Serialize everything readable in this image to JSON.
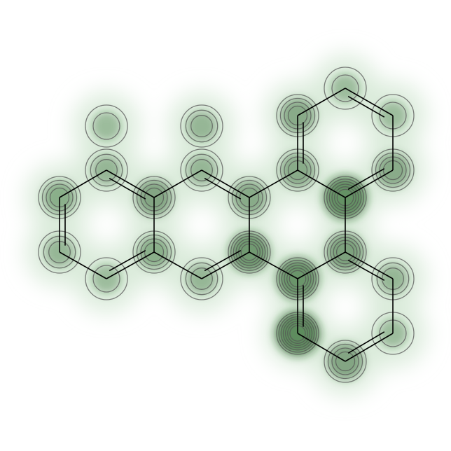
{
  "figure": {
    "kind": "molecule-similarity-map",
    "colors": {
      "background": "#ffffff",
      "bond": "#000000",
      "contour": "#555555",
      "glow": "#d8ead8",
      "fill_dark": "#1e5a1e"
    }
  },
  "molecule": {
    "atoms": [
      {
        "id": "a0",
        "weight": 0.45
      },
      {
        "id": "a1",
        "weight": 0.35
      },
      {
        "id": "a2",
        "weight": 0.35
      },
      {
        "id": "a3",
        "weight": 0.55
      },
      {
        "id": "a4",
        "weight": 0.3
      },
      {
        "id": "a5",
        "weight": 0.45
      },
      {
        "id": "a6",
        "weight": 0.35
      },
      {
        "id": "a7",
        "weight": 0.5
      },
      {
        "id": "a8",
        "weight": 0.7
      },
      {
        "id": "a9",
        "weight": 0.35
      },
      {
        "id": "a10",
        "weight": 0.5
      },
      {
        "id": "a11",
        "weight": 0.8
      },
      {
        "id": "a12",
        "weight": 0.75
      },
      {
        "id": "a13",
        "weight": 0.6
      },
      {
        "id": "a14",
        "weight": 0.85
      },
      {
        "id": "a15",
        "weight": 0.5
      },
      {
        "id": "a16",
        "weight": 0.3
      },
      {
        "id": "a17",
        "weight": 0.3
      },
      {
        "id": "a18",
        "weight": 0.5
      },
      {
        "id": "a19",
        "weight": 0.35
      },
      {
        "id": "a20",
        "weight": 0.3
      },
      {
        "id": "a21",
        "weight": 0.55
      },
      {
        "id": "a22",
        "weight": 0.35
      },
      {
        "id": "a23",
        "weight": 0.3
      }
    ]
  }
}
